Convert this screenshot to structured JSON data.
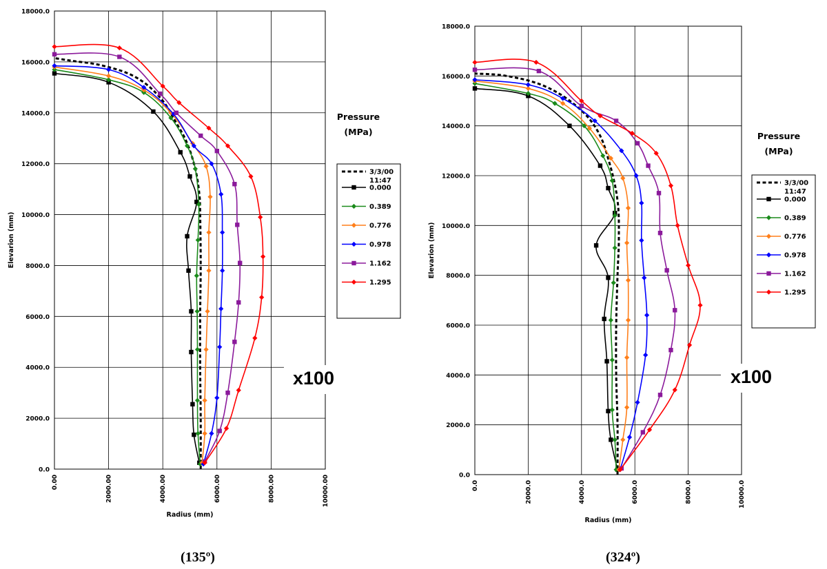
{
  "chart_data": [
    {
      "type": "line",
      "caption": "(135º)",
      "magnification": "x100",
      "xlabel": "Radius (mm)",
      "ylabel": "Elevarion (mm)",
      "xlim": [
        0,
        10000
      ],
      "ylim": [
        0,
        18000
      ],
      "x_ticks": [
        0,
        2000,
        4000,
        6000,
        8000,
        10000
      ],
      "x_tick_labels": [
        "0.00",
        "2000.00",
        "4000.00",
        "6000.00",
        "8000.00",
        "10000.00"
      ],
      "y_ticks": [
        0,
        2000,
        4000,
        6000,
        8000,
        10000,
        12000,
        14000,
        16000,
        18000
      ],
      "y_tick_labels": [
        "0.0",
        "2000.0",
        "4000.0",
        "6000.0",
        "8000.0",
        "10000.0",
        "12000.0",
        "14000.0",
        "16000.0",
        "18000.0"
      ],
      "grid": true,
      "legend_title_line1": "Pressure",
      "legend_title_line2": "(MPa)",
      "series": [
        {
          "name": "3/3/00",
          "name_line2": "11:47",
          "color": "#000000",
          "dashed": true,
          "marker": "none",
          "points": [
            [
              5400,
              0
            ],
            [
              5400,
              2000
            ],
            [
              5380,
              4000
            ],
            [
              5380,
              6000
            ],
            [
              5400,
              8000
            ],
            [
              5380,
              10000
            ],
            [
              5350,
              10800
            ],
            [
              5200,
              11800
            ],
            [
              4900,
              12800
            ],
            [
              4500,
              13600
            ],
            [
              3900,
              14600
            ],
            [
              3000,
              15400
            ],
            [
              1800,
              15850
            ],
            [
              600,
              16050
            ],
            [
              0,
              16150
            ]
          ]
        },
        {
          "name": "0.000",
          "color": "#000000",
          "dashed": false,
          "marker": "square",
          "points": [
            [
              5350,
              250
            ],
            [
              5150,
              1350
            ],
            [
              5100,
              2550
            ],
            [
              5050,
              4600
            ],
            [
              5050,
              6200
            ],
            [
              4950,
              7800
            ],
            [
              4900,
              9150
            ],
            [
              5250,
              10500
            ],
            [
              5000,
              11500
            ],
            [
              4650,
              12450
            ],
            [
              3650,
              14050
            ],
            [
              2000,
              15200
            ],
            [
              0,
              15550
            ]
          ]
        },
        {
          "name": "0.389",
          "color": "#1a8a1a",
          "dashed": false,
          "marker": "diamond",
          "points": [
            [
              5380,
              200
            ],
            [
              5300,
              1400
            ],
            [
              5280,
              2700
            ],
            [
              5280,
              4700
            ],
            [
              5270,
              6200
            ],
            [
              5250,
              7600
            ],
            [
              5300,
              9000
            ],
            [
              5330,
              10400
            ],
            [
              5200,
              11800
            ],
            [
              4900,
              12700
            ],
            [
              4300,
              13800
            ],
            [
              3300,
              14800
            ],
            [
              2000,
              15300
            ],
            [
              0,
              15700
            ]
          ]
        },
        {
          "name": "0.776",
          "color": "#ff7f1a",
          "dashed": false,
          "marker": "diamond",
          "points": [
            [
              5450,
              250
            ],
            [
              5550,
              1400
            ],
            [
              5550,
              2700
            ],
            [
              5600,
              4700
            ],
            [
              5650,
              6200
            ],
            [
              5700,
              7800
            ],
            [
              5700,
              9300
            ],
            [
              5750,
              10700
            ],
            [
              5600,
              11900
            ],
            [
              5100,
              12800
            ],
            [
              4300,
              14000
            ],
            [
              3300,
              14900
            ],
            [
              2000,
              15450
            ],
            [
              0,
              15800
            ]
          ]
        },
        {
          "name": "0.978",
          "color": "#0000ff",
          "dashed": false,
          "marker": "diamond",
          "points": [
            [
              5500,
              200
            ],
            [
              5800,
              1400
            ],
            [
              6000,
              2800
            ],
            [
              6100,
              4800
            ],
            [
              6150,
              6300
            ],
            [
              6200,
              7800
            ],
            [
              6200,
              9300
            ],
            [
              6150,
              10800
            ],
            [
              5800,
              12000
            ],
            [
              5150,
              12700
            ],
            [
              4400,
              13950
            ],
            [
              3300,
              15000
            ],
            [
              2000,
              15700
            ],
            [
              0,
              15850
            ]
          ]
        },
        {
          "name": "1.162",
          "color": "#8b1a9b",
          "dashed": false,
          "marker": "square",
          "points": [
            [
              5550,
              300
            ],
            [
              6100,
              1500
            ],
            [
              6400,
              3000
            ],
            [
              6650,
              5000
            ],
            [
              6800,
              6550
            ],
            [
              6850,
              8100
            ],
            [
              6750,
              9600
            ],
            [
              6650,
              11200
            ],
            [
              6000,
              12500
            ],
            [
              5400,
              13100
            ],
            [
              4500,
              14000
            ],
            [
              3900,
              14750
            ],
            [
              2400,
              16200
            ],
            [
              0,
              16300
            ]
          ]
        },
        {
          "name": "1.295",
          "color": "#ff0000",
          "dashed": false,
          "marker": "diamond",
          "points": [
            [
              5550,
              250
            ],
            [
              6350,
              1600
            ],
            [
              6800,
              3100
            ],
            [
              7400,
              5150
            ],
            [
              7650,
              6750
            ],
            [
              7700,
              8350
            ],
            [
              7600,
              9900
            ],
            [
              7250,
              11500
            ],
            [
              6400,
              12700
            ],
            [
              5700,
              13400
            ],
            [
              4600,
              14400
            ],
            [
              4000,
              15050
            ],
            [
              2400,
              16550
            ],
            [
              0,
              16600
            ]
          ]
        }
      ]
    },
    {
      "type": "line",
      "caption": "(324º)",
      "magnification": "x100",
      "xlabel": "Radius (mm)",
      "ylabel": "Elevarion (mm)",
      "xlim": [
        0,
        10000
      ],
      "ylim": [
        0,
        18000
      ],
      "x_ticks": [
        0,
        2000,
        4000,
        6000,
        8000,
        10000
      ],
      "x_tick_labels": [
        "0.0",
        "2000.0",
        "4000.0",
        "6000.0",
        "8000.0",
        "10000.0"
      ],
      "y_ticks": [
        0,
        2000,
        4000,
        6000,
        8000,
        10000,
        12000,
        14000,
        16000,
        18000
      ],
      "y_tick_labels": [
        "0.0",
        "2000.0",
        "4000.0",
        "6000.0",
        "8000.0",
        "10000.0",
        "12000.0",
        "14000.0",
        "16000.0",
        "18000.0"
      ],
      "grid": true,
      "legend_title_line1": "Pressure",
      "legend_title_line2": "(MPa)",
      "series": [
        {
          "name": "3/3/00",
          "name_line2": "11:47",
          "color": "#000000",
          "dashed": true,
          "marker": "none",
          "points": [
            [
              5350,
              0
            ],
            [
              5350,
              2000
            ],
            [
              5300,
              4000
            ],
            [
              5300,
              6000
            ],
            [
              5350,
              8000
            ],
            [
              5400,
              9500
            ],
            [
              5350,
              11000
            ],
            [
              5050,
              12500
            ],
            [
              4600,
              13800
            ],
            [
              3800,
              14800
            ],
            [
              2600,
              15600
            ],
            [
              1200,
              16000
            ],
            [
              0,
              16100
            ]
          ]
        },
        {
          "name": "0.000",
          "color": "#000000",
          "dashed": false,
          "marker": "square",
          "points": [
            [
              5350,
              200
            ],
            [
              5100,
              1400
            ],
            [
              5000,
              2550
            ],
            [
              4950,
              4550
            ],
            [
              4850,
              6250
            ],
            [
              5000,
              7900
            ],
            [
              4550,
              9200
            ],
            [
              5250,
              10500
            ],
            [
              5000,
              11500
            ],
            [
              4700,
              12400
            ],
            [
              3550,
              14000
            ],
            [
              2000,
              15200
            ],
            [
              0,
              15500
            ]
          ]
        },
        {
          "name": "0.389",
          "color": "#1a8a1a",
          "dashed": false,
          "marker": "diamond",
          "points": [
            [
              5300,
              200
            ],
            [
              5250,
              1400
            ],
            [
              5150,
              2600
            ],
            [
              5150,
              4600
            ],
            [
              5100,
              6200
            ],
            [
              5200,
              7700
            ],
            [
              5250,
              9100
            ],
            [
              5250,
              10400
            ],
            [
              5150,
              11800
            ],
            [
              4800,
              12800
            ],
            [
              4100,
              14000
            ],
            [
              3000,
              14900
            ],
            [
              2000,
              15300
            ],
            [
              0,
              15700
            ]
          ]
        },
        {
          "name": "0.776",
          "color": "#ff7f1a",
          "dashed": false,
          "marker": "diamond",
          "points": [
            [
              5400,
              200
            ],
            [
              5550,
              1400
            ],
            [
              5700,
              2700
            ],
            [
              5700,
              4700
            ],
            [
              5750,
              6200
            ],
            [
              5750,
              7800
            ],
            [
              5700,
              9300
            ],
            [
              5750,
              10700
            ],
            [
              5550,
              11900
            ],
            [
              5100,
              12700
            ],
            [
              4300,
              13900
            ],
            [
              3300,
              14900
            ],
            [
              2000,
              15500
            ],
            [
              0,
              15800
            ]
          ]
        },
        {
          "name": "0.978",
          "color": "#0000ff",
          "dashed": false,
          "marker": "diamond",
          "points": [
            [
              5450,
              200
            ],
            [
              5800,
              1500
            ],
            [
              6100,
              2900
            ],
            [
              6400,
              4800
            ],
            [
              6450,
              6400
            ],
            [
              6350,
              7900
            ],
            [
              6250,
              9400
            ],
            [
              6250,
              10900
            ],
            [
              6050,
              12000
            ],
            [
              5500,
              13000
            ],
            [
              4500,
              14200
            ],
            [
              3300,
              15100
            ],
            [
              2000,
              15650
            ],
            [
              0,
              15850
            ]
          ]
        },
        {
          "name": "1.162",
          "color": "#8b1a9b",
          "dashed": false,
          "marker": "square",
          "points": [
            [
              5500,
              250
            ],
            [
              6300,
              1700
            ],
            [
              6950,
              3200
            ],
            [
              7350,
              5000
            ],
            [
              7500,
              6600
            ],
            [
              7200,
              8200
            ],
            [
              6950,
              9700
            ],
            [
              6900,
              11300
            ],
            [
              6500,
              12400
            ],
            [
              6100,
              13300
            ],
            [
              5300,
              14200
            ],
            [
              4000,
              14800
            ],
            [
              2400,
              16200
            ],
            [
              0,
              16250
            ]
          ]
        },
        {
          "name": "1.295",
          "color": "#ff0000",
          "dashed": false,
          "marker": "diamond",
          "points": [
            [
              5450,
              200
            ],
            [
              6550,
              1800
            ],
            [
              7500,
              3400
            ],
            [
              8050,
              5200
            ],
            [
              8450,
              6800
            ],
            [
              8000,
              8400
            ],
            [
              7600,
              10000
            ],
            [
              7350,
              11600
            ],
            [
              6800,
              12900
            ],
            [
              5900,
              13700
            ],
            [
              4700,
              14400
            ],
            [
              4000,
              15000
            ],
            [
              2300,
              16550
            ],
            [
              0,
              16550
            ]
          ]
        }
      ]
    }
  ]
}
